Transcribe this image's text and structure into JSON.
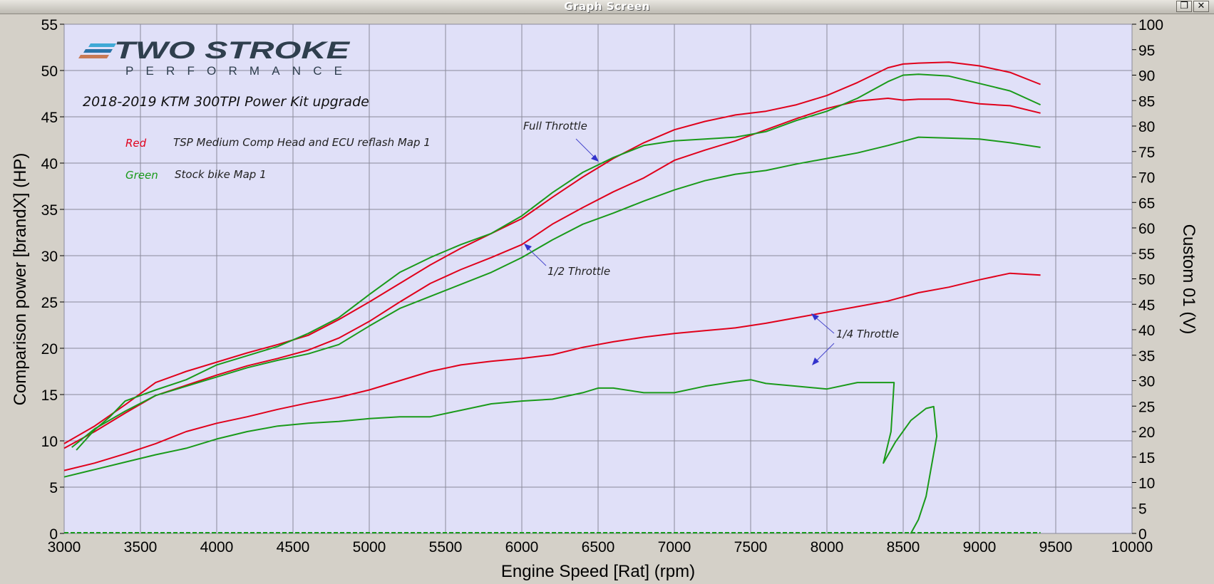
{
  "window": {
    "title": "Graph Screen",
    "restore_icon": "restore-window-icon",
    "close_icon": "close-icon"
  },
  "logo": {
    "brand": "TWO STROKE",
    "sub": "PERFORMANCE",
    "stripe_colors": [
      "#3fa9d6",
      "#2a73a8",
      "#c87a55"
    ]
  },
  "annotations": {
    "title": "2018-2019 KTM 300TPI Power Kit upgrade",
    "legend": [
      {
        "key": "Red",
        "desc": "TSP Medium Comp Head and ECU reflash Map 1",
        "color": "#e0001b"
      },
      {
        "key": "Green",
        "desc": "Stock bike Map 1",
        "color": "#1a9a1a"
      }
    ],
    "full_throttle": "Full Throttle",
    "half_throttle": "1/2 Throttle",
    "quarter_throttle": "1/4 Throttle"
  },
  "chart_data": {
    "type": "line",
    "xlabel": "Engine Speed [Rat] (rpm)",
    "ylabel": "Comparison power [brandX] (HP)",
    "y2label": "Custom 01 (V)",
    "xlim": [
      3000,
      10000
    ],
    "ylim": [
      0,
      55
    ],
    "y2lim": [
      0,
      100
    ],
    "xticks": [
      3000,
      3500,
      4000,
      4500,
      5000,
      5500,
      6000,
      6500,
      7000,
      7500,
      8000,
      8500,
      9000,
      9500,
      10000
    ],
    "yticks": [
      0,
      5,
      10,
      15,
      20,
      25,
      30,
      35,
      40,
      45,
      50,
      55
    ],
    "y2ticks": [
      0,
      5,
      10,
      15,
      20,
      25,
      30,
      35,
      40,
      45,
      50,
      55,
      60,
      65,
      70,
      75,
      80,
      85,
      90,
      95,
      100
    ],
    "grid": true,
    "plot_background": "#e0e0f8",
    "series": [
      {
        "color": "#e0001b",
        "x": [
          3000,
          3200,
          3400,
          3600,
          3800,
          4000,
          4200,
          4400,
          4600,
          4800,
          5000,
          5200,
          5400,
          5600,
          5800,
          6000,
          6200,
          6400,
          6600,
          6800,
          7000,
          7200,
          7400,
          7600,
          7800,
          8000,
          8200,
          8400,
          8500,
          8600,
          8800,
          9000,
          9200,
          9400
        ],
        "y": [
          9.7,
          11.6,
          13.9,
          16.3,
          17.5,
          18.5,
          19.5,
          20.4,
          21.4,
          23.1,
          25.0,
          27.0,
          29.0,
          30.8,
          32.4,
          34.0,
          36.3,
          38.5,
          40.5,
          42.2,
          43.6,
          44.5,
          45.2,
          45.6,
          46.3,
          47.3,
          48.7,
          50.3,
          50.7,
          50.8,
          50.9,
          50.5,
          49.8,
          48.5
        ]
      },
      {
        "color": "#e0001b",
        "x": [
          3000,
          3200,
          3400,
          3600,
          3800,
          4000,
          4200,
          4400,
          4600,
          4800,
          5000,
          5200,
          5400,
          5600,
          5800,
          6000,
          6200,
          6400,
          6600,
          6800,
          7000,
          7200,
          7400,
          7600,
          7800,
          8000,
          8200,
          8400,
          8500,
          8600,
          8800,
          9000,
          9200,
          9400
        ],
        "y": [
          9.2,
          11.0,
          13.0,
          14.9,
          16.0,
          17.1,
          18.1,
          18.9,
          19.8,
          21.1,
          22.9,
          25.0,
          27.0,
          28.5,
          29.8,
          31.2,
          33.4,
          35.2,
          36.9,
          38.4,
          40.3,
          41.4,
          42.4,
          43.6,
          44.8,
          45.9,
          46.7,
          47.0,
          46.8,
          46.9,
          46.9,
          46.4,
          46.2,
          45.4
        ]
      },
      {
        "color": "#e0001b",
        "x": [
          3000,
          3200,
          3400,
          3600,
          3800,
          4000,
          4200,
          4400,
          4600,
          4800,
          5000,
          5200,
          5400,
          5600,
          5800,
          6000,
          6200,
          6400,
          6600,
          6800,
          7000,
          7200,
          7400,
          7600,
          7800,
          8000,
          8200,
          8400,
          8600,
          8800,
          9000,
          9200,
          9400
        ],
        "y": [
          6.8,
          7.6,
          8.6,
          9.7,
          11.0,
          11.9,
          12.6,
          13.4,
          14.1,
          14.7,
          15.5,
          16.5,
          17.5,
          18.2,
          18.6,
          18.9,
          19.3,
          20.1,
          20.7,
          21.2,
          21.6,
          21.9,
          22.2,
          22.7,
          23.3,
          23.9,
          24.5,
          25.1,
          26.0,
          26.6,
          27.4,
          28.1,
          27.9
        ]
      },
      {
        "color": "#1a9a1a",
        "x": [
          3080,
          3200,
          3300,
          3400,
          3600,
          3800,
          4000,
          4200,
          4400,
          4600,
          4800,
          5000,
          5200,
          5400,
          5600,
          5800,
          6000,
          6200,
          6400,
          6600,
          6800,
          7000,
          7200,
          7400,
          7600,
          7800,
          8000,
          8200,
          8400,
          8500,
          8600,
          8800,
          9000,
          9200,
          9400
        ],
        "y": [
          9.0,
          11.2,
          12.6,
          14.3,
          15.5,
          16.6,
          18.2,
          19.2,
          20.2,
          21.6,
          23.3,
          25.8,
          28.2,
          29.8,
          31.2,
          32.4,
          34.3,
          36.8,
          39.0,
          40.6,
          41.9,
          42.4,
          42.6,
          42.8,
          43.4,
          44.6,
          45.6,
          47.0,
          48.8,
          49.5,
          49.6,
          49.4,
          48.6,
          47.8,
          46.3
        ]
      },
      {
        "color": "#1a9a1a",
        "x": [
          3050,
          3200,
          3400,
          3600,
          3800,
          4000,
          4200,
          4400,
          4600,
          4800,
          5000,
          5200,
          5400,
          5600,
          5800,
          6000,
          6200,
          6400,
          6600,
          6800,
          7000,
          7200,
          7400,
          7600,
          7800,
          8000,
          8200,
          8400,
          8600,
          8800,
          9000,
          9200,
          9400
        ],
        "y": [
          9.3,
          11.3,
          13.2,
          14.9,
          15.9,
          16.9,
          17.9,
          18.7,
          19.4,
          20.4,
          22.4,
          24.3,
          25.6,
          26.9,
          28.2,
          29.8,
          31.7,
          33.4,
          34.6,
          35.9,
          37.1,
          38.1,
          38.8,
          39.2,
          39.9,
          40.5,
          41.1,
          41.9,
          42.8,
          42.7,
          42.6,
          42.2,
          41.7
        ]
      },
      {
        "color": "#1a9a1a",
        "x": [
          3000,
          3200,
          3400,
          3600,
          3800,
          4000,
          4200,
          4400,
          4600,
          4800,
          5000,
          5200,
          5400,
          5600,
          5800,
          6000,
          6200,
          6400,
          6500,
          6600,
          6800,
          7000,
          7200,
          7400,
          7500,
          7600,
          7800,
          8000,
          8200,
          8300,
          8440,
          8420,
          8370,
          8450,
          8550,
          8650,
          8700,
          8720,
          8650,
          8600,
          8550
        ],
        "y": [
          6.1,
          6.9,
          7.7,
          8.5,
          9.2,
          10.2,
          11.0,
          11.6,
          11.9,
          12.1,
          12.4,
          12.6,
          12.6,
          13.3,
          14.0,
          14.3,
          14.5,
          15.2,
          15.7,
          15.7,
          15.2,
          15.2,
          15.9,
          16.4,
          16.6,
          16.2,
          15.9,
          15.6,
          16.3,
          16.3,
          16.3,
          11.0,
          7.6,
          9.9,
          12.2,
          13.5,
          13.7,
          10.5,
          4.0,
          1.5,
          0.0
        ]
      }
    ]
  }
}
